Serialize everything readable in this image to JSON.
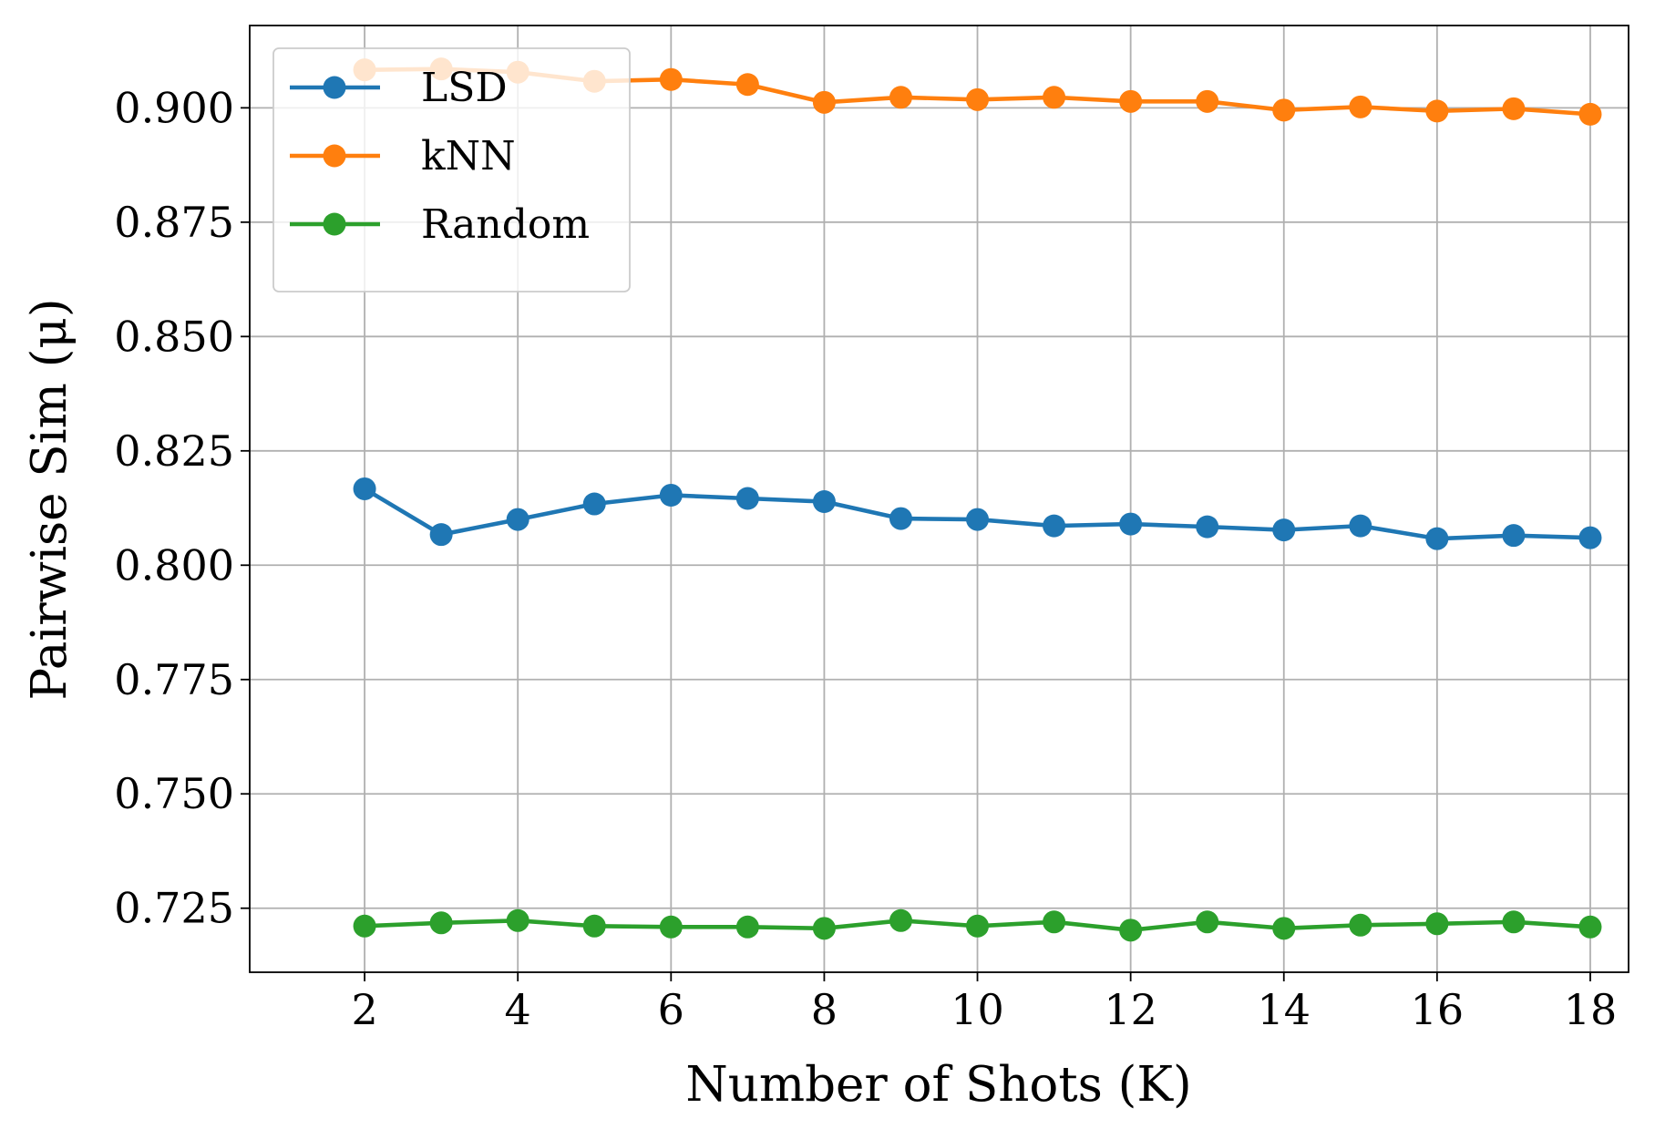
{
  "chart_data": {
    "type": "line",
    "xlabel": "Number of Shots (K)",
    "ylabel": "Pairwise Sim (μ)",
    "x": [
      2,
      3,
      4,
      5,
      6,
      7,
      8,
      9,
      10,
      11,
      12,
      13,
      14,
      15,
      16,
      17,
      18
    ],
    "series": [
      {
        "name": "LSD",
        "color": "#1f77b4",
        "values": [
          0.8167,
          0.8067,
          0.81,
          0.8134,
          0.8153,
          0.8146,
          0.8139,
          0.8102,
          0.81,
          0.8086,
          0.809,
          0.8084,
          0.8077,
          0.8086,
          0.8058,
          0.8065,
          0.806
        ]
      },
      {
        "name": "kNN",
        "color": "#ff7f0e",
        "values": [
          0.9083,
          0.9085,
          0.9078,
          0.9058,
          0.9062,
          0.9051,
          0.9012,
          0.9023,
          0.9018,
          0.9023,
          0.9014,
          0.9014,
          0.8995,
          0.9002,
          0.8993,
          0.8998,
          0.8986
        ]
      },
      {
        "name": "Random",
        "color": "#2ca02c",
        "values": [
          0.7211,
          0.7218,
          0.7223,
          0.7211,
          0.7209,
          0.7209,
          0.7206,
          0.7223,
          0.7211,
          0.722,
          0.7202,
          0.722,
          0.7206,
          0.7213,
          0.7216,
          0.722,
          0.7209
        ]
      }
    ],
    "xlim": [
      0.5,
      18.5
    ],
    "xticks": [
      2,
      4,
      6,
      8,
      10,
      12,
      14,
      16,
      18
    ],
    "ylim": [
      0.711,
      0.918
    ],
    "yticks": [
      {
        "value": 0.725,
        "label": "0.725"
      },
      {
        "value": 0.75,
        "label": "0.750"
      },
      {
        "value": 0.775,
        "label": "0.775"
      },
      {
        "value": 0.8,
        "label": "0.800"
      },
      {
        "value": 0.825,
        "label": "0.825"
      },
      {
        "value": 0.85,
        "label": "0.850"
      },
      {
        "value": 0.875,
        "label": "0.875"
      },
      {
        "value": 0.9,
        "label": "0.900"
      }
    ],
    "grid": true,
    "legend": "upper left"
  }
}
